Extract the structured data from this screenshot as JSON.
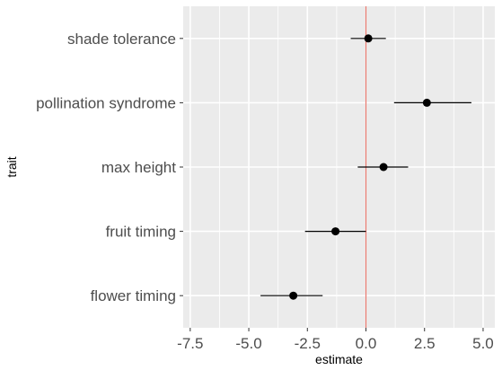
{
  "chart_data": {
    "type": "scatter",
    "subtype": "coefficient-plot-with-error-bars",
    "xlabel": "estimate",
    "ylabel": "trait",
    "xlim": [
      -7.8,
      5.5
    ],
    "x_ticks": [
      -7.5,
      -5.0,
      -2.5,
      0.0,
      2.5,
      5.0
    ],
    "x_tick_labels": [
      "-7.5",
      "-5.0",
      "-2.5",
      "0.0",
      "2.5",
      "5.0"
    ],
    "categories": [
      "flower timing",
      "fruit timing",
      "max height",
      "pollination syndrome",
      "shade tolerance"
    ],
    "points": [
      {
        "trait": "shade tolerance",
        "estimate": 0.1,
        "lower": -0.65,
        "upper": 0.85
      },
      {
        "trait": "pollination syndrome",
        "estimate": 2.6,
        "lower": 1.2,
        "upper": 4.5
      },
      {
        "trait": "max height",
        "estimate": 0.75,
        "lower": -0.35,
        "upper": 1.8
      },
      {
        "trait": "fruit timing",
        "estimate": -1.3,
        "lower": -2.6,
        "upper": 0.0
      },
      {
        "trait": "flower timing",
        "estimate": -3.1,
        "lower": -4.5,
        "upper": -1.85
      }
    ],
    "reference_line": {
      "x": 0.0,
      "color": "#e8776e"
    },
    "grid": true,
    "legend": "none",
    "colors": {
      "panel_background": "#ebebeb",
      "grid_major": "#ffffff",
      "point": "#000000",
      "error_bar": "#000000"
    }
  }
}
